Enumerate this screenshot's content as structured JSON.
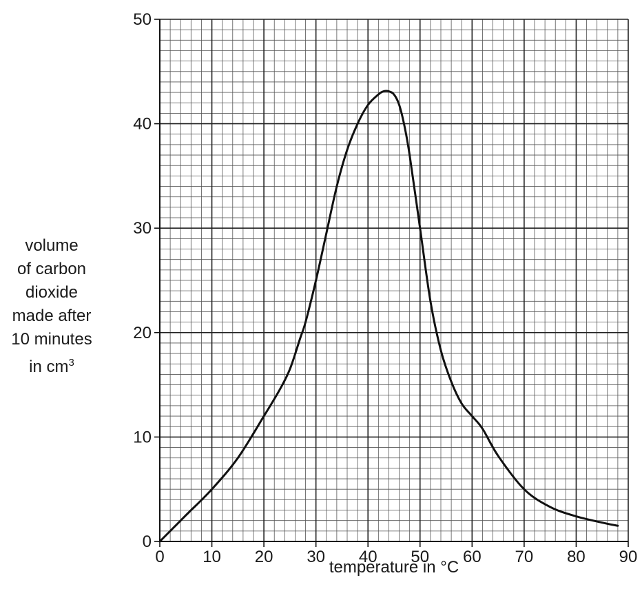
{
  "chart_data": {
    "type": "line",
    "xlabel": "temperature in °C",
    "ylabel_lines": [
      "volume",
      "of carbon",
      "dioxide",
      "made after",
      "10 minutes",
      "in cm"
    ],
    "ylabel_superscript": "3",
    "xlim": [
      0,
      90
    ],
    "ylim": [
      0,
      50
    ],
    "x_ticks": [
      0,
      10,
      20,
      30,
      40,
      50,
      60,
      70,
      80,
      90
    ],
    "y_ticks": [
      0,
      10,
      20,
      30,
      40,
      50
    ],
    "x_tick_labels": [
      "0",
      "10",
      "20",
      "30",
      "40",
      "50",
      "60",
      "70",
      "80",
      "90"
    ],
    "y_tick_labels": [
      "0",
      "10",
      "20",
      "30",
      "40",
      "50"
    ],
    "grid": true,
    "minor_grid_step_x": 2,
    "minor_grid_step_y": 1,
    "series": [
      {
        "color": "#111111",
        "x": [
          0,
          5,
          10,
          15,
          20,
          23,
          25,
          27,
          28,
          30,
          32,
          34,
          36,
          38,
          40,
          42,
          43,
          44,
          45,
          46,
          47,
          48,
          50,
          52,
          54,
          56,
          58,
          60,
          62,
          65,
          70,
          75,
          80,
          85,
          88
        ],
        "y": [
          0,
          2.5,
          5,
          8,
          12,
          14.5,
          16.5,
          19.5,
          21,
          25,
          29.5,
          34,
          37.5,
          40,
          41.8,
          42.8,
          43.1,
          43.1,
          42.8,
          41.8,
          39.8,
          37,
          30,
          23,
          18.3,
          15.3,
          13.2,
          12,
          10.8,
          8.2,
          5,
          3.3,
          2.4,
          1.8,
          1.5
        ]
      }
    ]
  }
}
